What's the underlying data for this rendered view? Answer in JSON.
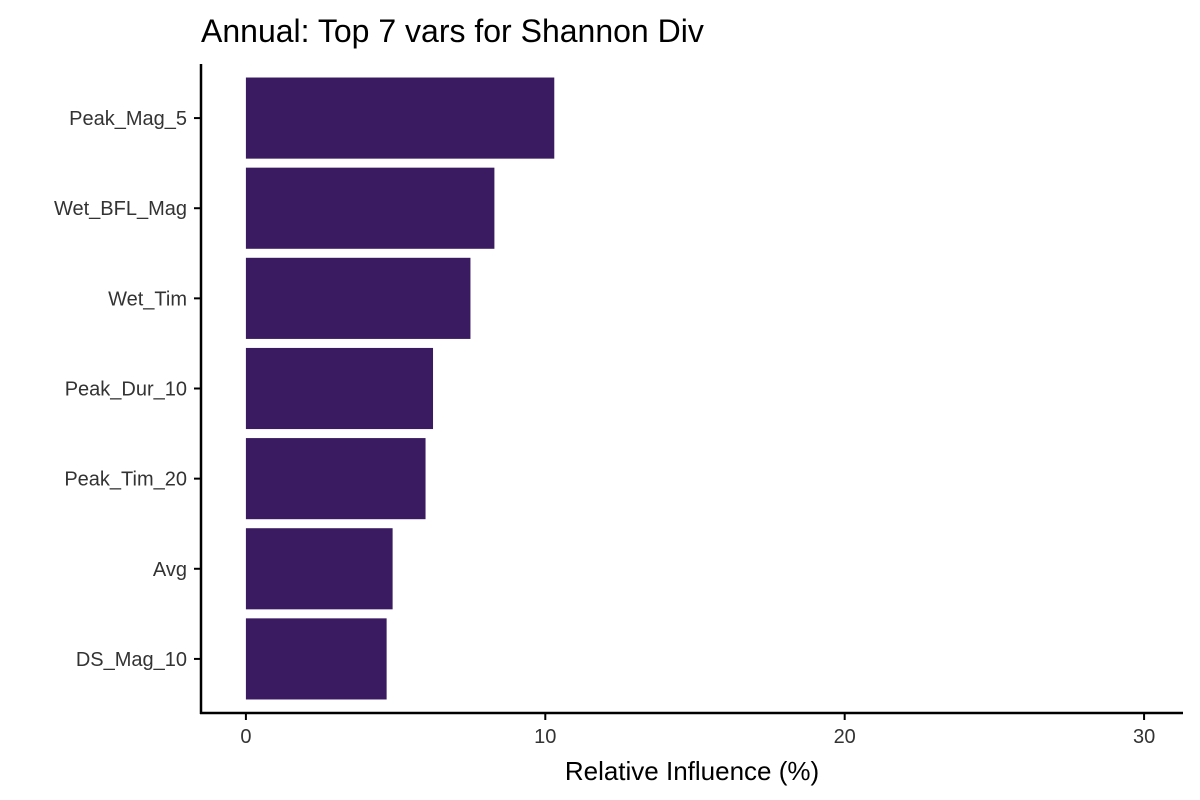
{
  "chart_data": {
    "type": "bar",
    "orientation": "horizontal",
    "title": "Annual: Top 7 vars for Shannon Div",
    "xlabel": "Relative Influence (%)",
    "ylabel": "",
    "categories": [
      "Peak_Mag_5",
      "Wet_BFL_Mag",
      "Wet_Tim",
      "Peak_Dur_10",
      "Peak_Tim_20",
      "Avg",
      "DS_Mag_10"
    ],
    "values": [
      10.3,
      8.3,
      7.5,
      6.25,
      6.0,
      4.9,
      4.7
    ],
    "xlim": [
      -1.5,
      31.3
    ],
    "xticks": [
      0,
      10,
      20,
      30
    ],
    "xtick_labels": [
      "0",
      "10",
      "20",
      "30"
    ],
    "bar_color": "#3a1a61",
    "grid": false,
    "legend": "none"
  }
}
